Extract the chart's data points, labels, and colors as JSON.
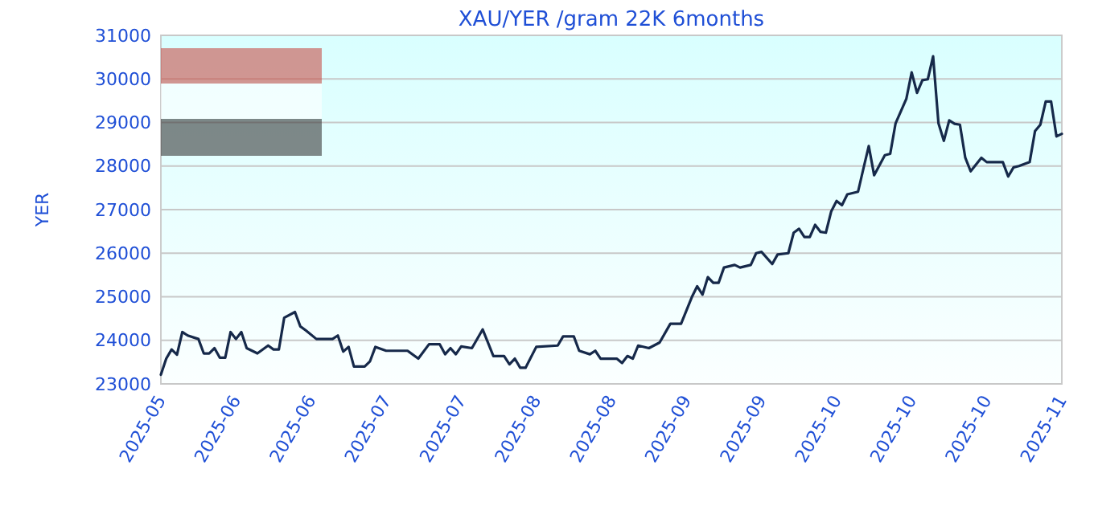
{
  "chart_data": {
    "type": "line",
    "title": "XAU/YER /gram 22K 6months",
    "ylabel": "YER",
    "xlim": [
      "2025-05-29",
      "2025-11-13"
    ],
    "xticks": [
      {
        "value": "2025-05-29",
        "label": "2025-05"
      },
      {
        "value": "2025-06-12",
        "label": "2025-06"
      },
      {
        "value": "2025-06-26",
        "label": "2025-06"
      },
      {
        "value": "2025-07-10",
        "label": "2025-07"
      },
      {
        "value": "2025-07-24",
        "label": "2025-07"
      },
      {
        "value": "2025-08-07",
        "label": "2025-08"
      },
      {
        "value": "2025-08-21",
        "label": "2025-08"
      },
      {
        "value": "2025-09-04",
        "label": "2025-09"
      },
      {
        "value": "2025-09-18",
        "label": "2025-09"
      },
      {
        "value": "2025-10-02",
        "label": "2025-10"
      },
      {
        "value": "2025-10-16",
        "label": "2025-10"
      },
      {
        "value": "2025-10-30",
        "label": "2025-10"
      },
      {
        "value": "2025-11-13",
        "label": "2025-11"
      }
    ],
    "ylim": [
      23000,
      31000
    ],
    "yticks": [
      23000,
      24000,
      25000,
      26000,
      27000,
      28000,
      29000,
      30000,
      31000
    ],
    "grid": "y",
    "marker": "none",
    "line_style": "solid",
    "x": [
      "2025-05-29",
      "2025-05-30",
      "2025-05-31",
      "2025-06-01",
      "2025-06-02",
      "2025-06-03",
      "2025-06-05",
      "2025-06-06",
      "2025-06-07",
      "2025-06-08",
      "2025-06-09",
      "2025-06-10",
      "2025-06-11",
      "2025-06-12",
      "2025-06-13",
      "2025-06-14",
      "2025-06-16",
      "2025-06-18",
      "2025-06-19",
      "2025-06-20",
      "2025-06-21",
      "2025-06-23",
      "2025-06-24",
      "2025-06-25",
      "2025-06-27",
      "2025-06-30",
      "2025-07-01",
      "2025-07-02",
      "2025-07-03",
      "2025-07-04",
      "2025-07-06",
      "2025-07-07",
      "2025-07-08",
      "2025-07-10",
      "2025-07-14",
      "2025-07-16",
      "2025-07-18",
      "2025-07-20",
      "2025-07-21",
      "2025-07-22",
      "2025-07-23",
      "2025-07-24",
      "2025-07-26",
      "2025-07-28",
      "2025-07-30",
      "2025-08-01",
      "2025-08-02",
      "2025-08-03",
      "2025-08-04",
      "2025-08-05",
      "2025-08-07",
      "2025-08-11",
      "2025-08-12",
      "2025-08-14",
      "2025-08-15",
      "2025-08-17",
      "2025-08-18",
      "2025-08-19",
      "2025-08-22",
      "2025-08-23",
      "2025-08-24",
      "2025-08-25",
      "2025-08-26",
      "2025-08-28",
      "2025-08-30",
      "2025-09-01",
      "2025-09-03",
      "2025-09-05",
      "2025-09-06",
      "2025-09-07",
      "2025-09-08",
      "2025-09-09",
      "2025-09-10",
      "2025-09-11",
      "2025-09-13",
      "2025-09-14",
      "2025-09-16",
      "2025-09-17",
      "2025-09-18",
      "2025-09-20",
      "2025-09-21",
      "2025-09-23",
      "2025-09-24",
      "2025-09-25",
      "2025-09-26",
      "2025-09-27",
      "2025-09-28",
      "2025-09-29",
      "2025-09-30",
      "2025-10-01",
      "2025-10-02",
      "2025-10-03",
      "2025-10-04",
      "2025-10-06",
      "2025-10-07",
      "2025-10-08",
      "2025-10-09",
      "2025-10-11",
      "2025-10-12",
      "2025-10-13",
      "2025-10-15",
      "2025-10-16",
      "2025-10-17",
      "2025-10-18",
      "2025-10-19",
      "2025-10-20",
      "2025-10-21",
      "2025-10-22",
      "2025-10-23",
      "2025-10-24",
      "2025-10-25",
      "2025-10-26",
      "2025-10-27",
      "2025-10-29",
      "2025-10-30",
      "2025-11-02",
      "2025-11-03",
      "2025-11-04",
      "2025-11-05",
      "2025-11-07",
      "2025-11-08",
      "2025-11-09",
      "2025-11-10",
      "2025-11-11",
      "2025-11-12",
      "2025-11-13"
    ],
    "series": [
      {
        "color": "#16294a",
        "values": [
          23210,
          23580,
          23790,
          23670,
          24190,
          24110,
          24030,
          23700,
          23700,
          23820,
          23600,
          23600,
          24190,
          24030,
          24190,
          23820,
          23700,
          23880,
          23790,
          23790,
          24520,
          24650,
          24320,
          24230,
          24030,
          24030,
          24110,
          23740,
          23850,
          23400,
          23400,
          23520,
          23850,
          23760,
          23760,
          23580,
          23910,
          23910,
          23680,
          23820,
          23680,
          23860,
          23820,
          24250,
          23640,
          23640,
          23450,
          23580,
          23370,
          23370,
          23850,
          23880,
          24090,
          24090,
          23760,
          23680,
          23760,
          23580,
          23580,
          23480,
          23640,
          23580,
          23880,
          23820,
          23950,
          24380,
          24380,
          24990,
          25240,
          25050,
          25450,
          25320,
          25320,
          25670,
          25730,
          25670,
          25730,
          26000,
          26030,
          25750,
          25970,
          26000,
          26470,
          26560,
          26370,
          26370,
          26650,
          26490,
          26470,
          26960,
          27200,
          27100,
          27350,
          27410,
          27940,
          28460,
          27790,
          28250,
          28280,
          28980,
          29540,
          30150,
          29680,
          29970,
          29990,
          30520,
          28980,
          28580,
          29050,
          28970,
          28950,
          28190,
          27880,
          28190,
          28090,
          28090,
          27760,
          27970,
          28000,
          28090,
          28800,
          28950,
          29480,
          29480,
          28680,
          28740
        ]
      }
    ]
  }
}
